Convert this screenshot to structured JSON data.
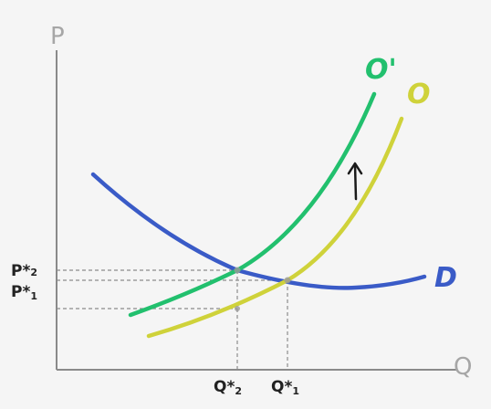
{
  "axes": {
    "y_label": "P",
    "x_label": "Q"
  },
  "curves": {
    "supply_new": {
      "label": "O'",
      "color": "#22c06e"
    },
    "supply_old": {
      "label": "O",
      "color": "#cfd23a"
    },
    "demand": {
      "label": "D",
      "color": "#3a5bc7"
    }
  },
  "price_labels": {
    "p2": {
      "main": "P*",
      "sub": "2"
    },
    "p1": {
      "main": "P*",
      "sub": "1"
    }
  },
  "quantity_labels": {
    "q2": {
      "main": "Q*",
      "sub": "2"
    },
    "q1": {
      "main": "Q*",
      "sub": "1"
    }
  },
  "shift_arrow": {
    "direction": "up",
    "icon": "up-arrow-icon"
  }
}
